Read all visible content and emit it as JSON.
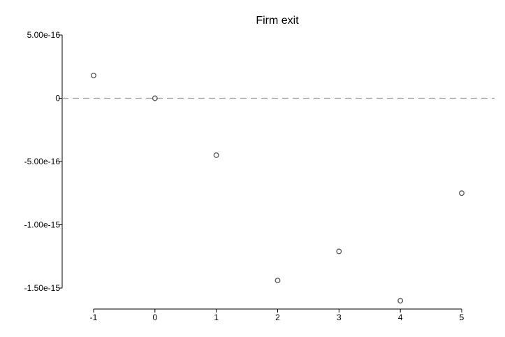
{
  "chart_data": {
    "type": "scatter",
    "title": "Firm exit",
    "xlabel": "",
    "ylabel": "",
    "x": [
      -1,
      0,
      1,
      2,
      3,
      4,
      5
    ],
    "y": [
      1.8e-16,
      0,
      -4.5e-16,
      -1.44e-15,
      -1.21e-15,
      -1.6e-15,
      -7.5e-16
    ],
    "xlim": [
      -1,
      5
    ],
    "ylim": [
      -1.5e-15,
      5e-16
    ],
    "xticks": [
      -1,
      0,
      1,
      2,
      3,
      4,
      5
    ],
    "x_tick_labels": [
      "-1",
      "0",
      "1",
      "2",
      "3",
      "4",
      "5"
    ],
    "yticks": [
      5e-16,
      0,
      -5e-16,
      -1e-15,
      -1.5e-15
    ],
    "y_tick_labels": [
      "5.00e-16",
      "0",
      "-5.00e-16",
      "-1.00e-15",
      "-1.50e-15"
    ],
    "reference_line": {
      "y": 0,
      "style": "dashed",
      "color": "#999999"
    },
    "marker": {
      "shape": "hollow-circle",
      "color": "#555555"
    },
    "grid": false,
    "legend": false
  }
}
